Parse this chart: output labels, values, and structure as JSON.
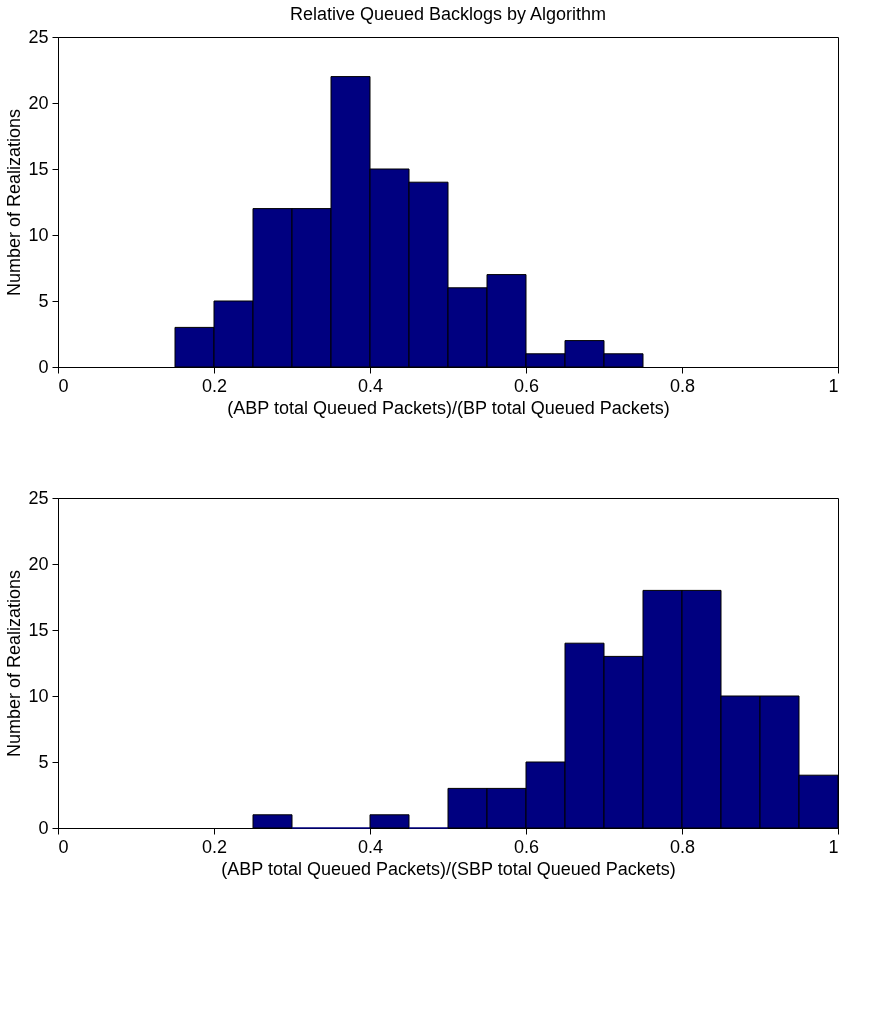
{
  "chart_data": [
    {
      "type": "histogram",
      "title": "Relative Queued Backlogs by Algorithm",
      "xlabel": "(ABP total Queued Packets)/(BP total Queued Packets)",
      "ylabel": "Number of Realizations",
      "bins": [
        0.15,
        0.2,
        0.25,
        0.3,
        0.35,
        0.4,
        0.45,
        0.5,
        0.55,
        0.6,
        0.65,
        0.7,
        0.75
      ],
      "values": [
        3,
        5,
        12,
        12,
        22,
        15,
        14,
        6,
        7,
        1,
        2,
        1
      ],
      "color": "#000080",
      "xlim": [
        0,
        1
      ],
      "xticks": [
        0,
        0.2,
        0.4,
        0.6,
        0.8,
        1
      ],
      "ylim": [
        0,
        25
      ],
      "yticks": [
        0,
        5,
        10,
        15,
        20,
        25
      ],
      "grid": false
    },
    {
      "type": "histogram",
      "xlabel": "(ABP total Queued Packets)/(SBP total Queued Packets)",
      "ylabel": "Number of Realizations",
      "bins": [
        0.25,
        0.3,
        0.35,
        0.4,
        0.45,
        0.5,
        0.55,
        0.6,
        0.65,
        0.7,
        0.75,
        0.8,
        0.85,
        0.9,
        0.95,
        1.0
      ],
      "values": [
        1,
        0,
        0,
        1,
        0,
        3,
        3,
        5,
        14,
        13,
        18,
        18,
        10,
        10,
        4
      ],
      "color": "#000080",
      "xlim": [
        0,
        1
      ],
      "xticks": [
        0,
        0.2,
        0.4,
        0.6,
        0.8,
        1
      ],
      "ylim": [
        0,
        25
      ],
      "yticks": [
        0,
        5,
        10,
        15,
        20,
        25
      ],
      "grid": false
    }
  ]
}
